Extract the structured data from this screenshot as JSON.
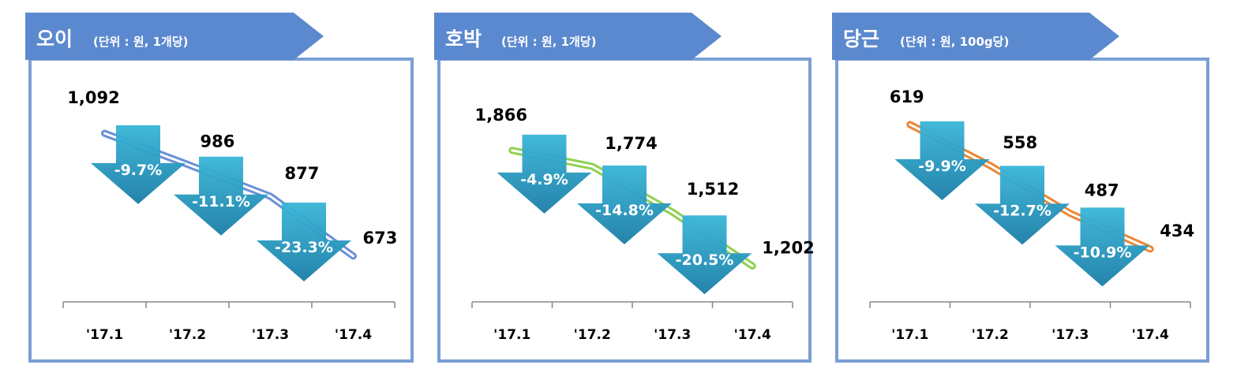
{
  "colors": {
    "frame": "#7b9ed4",
    "tab": "#5b89cf",
    "arrow_top": "#3ab6d8",
    "arrow_bottom": "#1c7ea8"
  },
  "chart_data": [
    {
      "type": "line",
      "title": "오이",
      "subtitle": "(단위 : 원, 1개당)",
      "categories": [
        "'17.1",
        "'17.2",
        "'17.3",
        "'17.4"
      ],
      "values": [
        1092,
        986,
        877,
        673
      ],
      "value_labels": [
        "1,092",
        "986",
        "877",
        "673"
      ],
      "changes": [
        "-9.7%",
        "-11.1%",
        "-23.3%"
      ],
      "line_color": "#6a8fd8",
      "ylim": [
        600,
        1130
      ]
    },
    {
      "type": "line",
      "title": "호박",
      "subtitle": "(단위 : 원, 1개당)",
      "categories": [
        "'17.1",
        "'17.2",
        "'17.3",
        "'17.4"
      ],
      "values": [
        1866,
        1774,
        1512,
        1202
      ],
      "value_labels": [
        "1,866",
        "1,774",
        "1,512",
        "1,202"
      ],
      "changes": [
        "-4.9%",
        "-14.8%",
        "-20.5%"
      ],
      "line_color": "#8fd14f",
      "ylim": [
        1100,
        1960
      ]
    },
    {
      "type": "line",
      "title": "당근",
      "subtitle": "(단위 : 원, 100g당)",
      "categories": [
        "'17.1",
        "'17.2",
        "'17.3",
        "'17.4"
      ],
      "values": [
        619,
        558,
        487,
        434
      ],
      "value_labels": [
        "619",
        "558",
        "487",
        "434"
      ],
      "changes": [
        "-9.9%",
        "-12.7%",
        "-10.9%"
      ],
      "line_color": "#ee8636",
      "ylim": [
        400,
        640
      ]
    }
  ]
}
